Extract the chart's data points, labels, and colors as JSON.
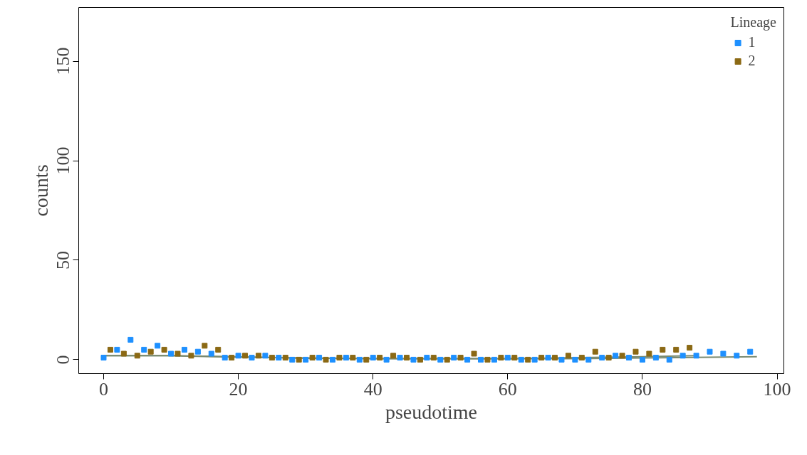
{
  "chart_data": {
    "type": "scatter",
    "xlabel": "pseudotime",
    "ylabel": "counts",
    "legend_title": "Lineage",
    "xlim": [
      -3.7,
      101
    ],
    "ylim": [
      -7,
      177
    ],
    "xticks": [
      0,
      20,
      40,
      60,
      80,
      100
    ],
    "yticks": [
      0,
      50,
      100,
      150
    ],
    "grid": false,
    "legend": "top right",
    "marker": "square",
    "series": [
      {
        "name": "1",
        "color": "#1e90ff",
        "x": [
          0,
          2,
          4,
          6,
          8,
          10,
          12,
          14,
          16,
          18,
          20,
          22,
          24,
          26,
          28,
          30,
          32,
          34,
          36,
          38,
          40,
          42,
          44,
          46,
          48,
          50,
          52,
          54,
          56,
          58,
          60,
          62,
          64,
          66,
          68,
          70,
          72,
          74,
          76,
          78,
          80,
          82,
          84,
          86,
          88,
          90,
          92,
          94,
          96
        ],
        "values": [
          1,
          5,
          10,
          5,
          7,
          3,
          5,
          4,
          3,
          1,
          2,
          1,
          2,
          1,
          0,
          0,
          1,
          0,
          1,
          0,
          1,
          0,
          1,
          0,
          1,
          0,
          1,
          0,
          0,
          0,
          1,
          0,
          0,
          1,
          0,
          0,
          0,
          1,
          2,
          1,
          0,
          1,
          0,
          2,
          2,
          4,
          3,
          2,
          4
        ]
      },
      {
        "name": "2",
        "color": "#8b6914",
        "x": [
          1,
          3,
          5,
          7,
          9,
          11,
          13,
          15,
          17,
          19,
          21,
          23,
          25,
          27,
          29,
          31,
          33,
          35,
          37,
          39,
          41,
          43,
          45,
          47,
          49,
          51,
          53,
          55,
          57,
          59,
          61,
          63,
          65,
          67,
          69,
          71,
          73,
          75,
          77,
          79,
          81,
          83,
          85,
          87
        ],
        "values": [
          5,
          3,
          2,
          4,
          5,
          3,
          2,
          7,
          5,
          1,
          2,
          2,
          1,
          1,
          0,
          1,
          0,
          1,
          1,
          0,
          1,
          2,
          1,
          0,
          1,
          0,
          1,
          3,
          0,
          1,
          1,
          0,
          1,
          1,
          2,
          1,
          4,
          1,
          2,
          4,
          3,
          5,
          5,
          6
        ]
      },
      {
        "type": "line",
        "marker": "none",
        "color": "#7a8a70",
        "x": [
          0,
          10,
          20,
          30,
          50,
          70,
          85,
          97
        ],
        "values": [
          2,
          2,
          1.5,
          0.7,
          0.5,
          0.5,
          1,
          1.5
        ]
      },
      {
        "type": "line",
        "marker": "none",
        "color": "#7a8a70",
        "x": [
          0,
          10,
          20,
          40,
          60,
          80,
          88
        ],
        "values": [
          2,
          2,
          1.2,
          0.5,
          0.5,
          1.5,
          2
        ]
      }
    ]
  }
}
